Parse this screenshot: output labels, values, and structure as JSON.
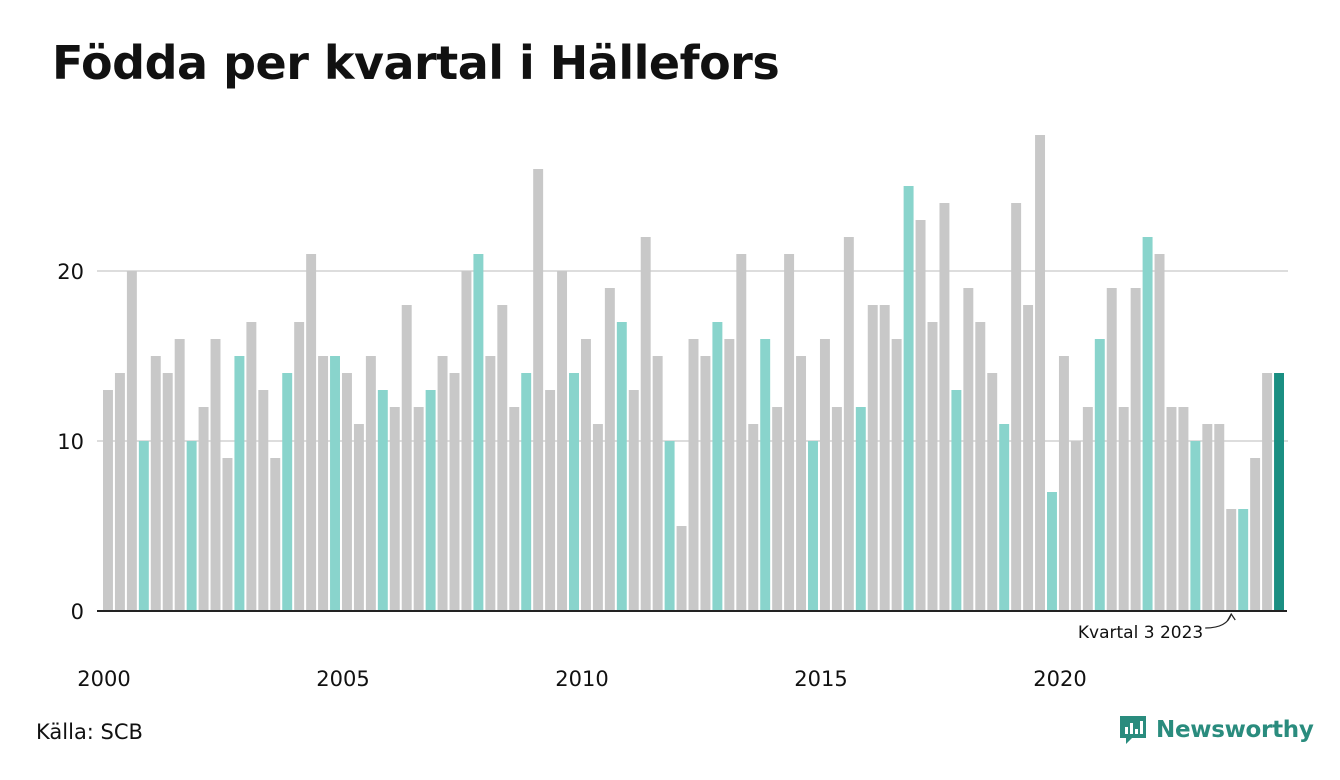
{
  "title": "Födda per kvartal i Hällefors",
  "source": "Källa: SCB",
  "brand": {
    "name": "Newsworthy",
    "icon": "newsworthy-logo-icon"
  },
  "colors": {
    "bar_default": "#c8c8c8",
    "bar_q4": "#89d4cc",
    "bar_latest": "#1a8f82",
    "grid": "#dddddd",
    "axis": "#222222",
    "brand": "#2a8c7e"
  },
  "chart_data": {
    "type": "bar",
    "title": "Födda per kvartal i Hällefors",
    "xlabel": "",
    "ylabel": "",
    "ylim": [
      0,
      28
    ],
    "y_ticks": [
      0,
      10,
      20
    ],
    "x_tick_labels": [
      "2000",
      "2005",
      "2010",
      "2015",
      "2020"
    ],
    "grid": true,
    "highlight": "every fourth quarter in light teal, latest quarter in dark teal",
    "annotation": {
      "text": "Kvartal 3 2023",
      "target_index": 94
    },
    "start": {
      "year": 2000,
      "quarter": 1
    },
    "values": [
      13,
      14,
      20,
      10,
      15,
      14,
      16,
      10,
      12,
      16,
      9,
      15,
      17,
      13,
      9,
      14,
      17,
      21,
      15,
      15,
      14,
      11,
      15,
      13,
      12,
      18,
      12,
      13,
      15,
      14,
      20,
      21,
      15,
      18,
      12,
      14,
      26,
      13,
      20,
      14,
      16,
      11,
      19,
      17,
      13,
      22,
      15,
      10,
      5,
      16,
      15,
      17,
      16,
      21,
      11,
      16,
      12,
      21,
      15,
      10,
      16,
      12,
      22,
      12,
      18,
      18,
      16,
      25,
      23,
      17,
      24,
      13,
      19,
      17,
      14,
      11,
      24,
      18,
      28,
      7,
      15,
      10,
      12,
      16,
      19,
      12,
      19,
      22,
      21,
      12,
      12,
      10,
      11,
      11,
      6,
      6,
      9,
      14,
      14
    ]
  }
}
